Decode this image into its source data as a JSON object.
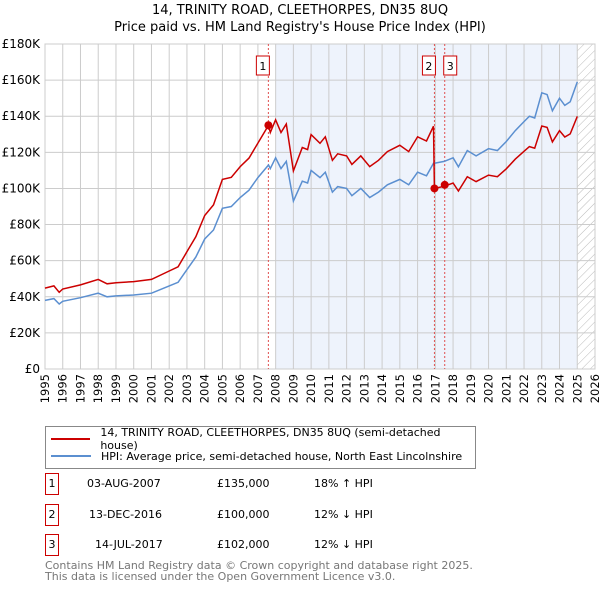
{
  "chart_data": {
    "type": "line",
    "title": "14, TRINITY ROAD, CLEETHORPES, DN35 8UQ",
    "subtitle": "Price paid vs. HM Land Registry's House Price Index (HPI)",
    "xlim": [
      1995,
      2026
    ],
    "ylim": [
      0,
      180000
    ],
    "yticks": [
      {
        "v": 0,
        "label": "£0"
      },
      {
        "v": 20000,
        "label": "£20K"
      },
      {
        "v": 40000,
        "label": "£40K"
      },
      {
        "v": 60000,
        "label": "£60K"
      },
      {
        "v": 80000,
        "label": "£80K"
      },
      {
        "v": 100000,
        "label": "£100K"
      },
      {
        "v": 120000,
        "label": "£120K"
      },
      {
        "v": 140000,
        "label": "£140K"
      },
      {
        "v": 160000,
        "label": "£160K"
      },
      {
        "v": 180000,
        "label": "£180K"
      }
    ],
    "xticks": [
      "1995",
      "1996",
      "1997",
      "1998",
      "1999",
      "2000",
      "2001",
      "2002",
      "2003",
      "2004",
      "2005",
      "2006",
      "2007",
      "2008",
      "2009",
      "2010",
      "2011",
      "2012",
      "2013",
      "2014",
      "2015",
      "2016",
      "2017",
      "2018",
      "2019",
      "2020",
      "2021",
      "2022",
      "2023",
      "2024",
      "2025",
      "2026"
    ],
    "grid": true,
    "shaded_from": 2008,
    "hatched_from": 2025,
    "x": [
      1995,
      1995.5,
      1995.8,
      1996,
      1997,
      1998,
      1998.5,
      1999,
      2000,
      2001,
      2002,
      2002.5,
      2003,
      2003.5,
      2004,
      2004.5,
      2005,
      2005.5,
      2006,
      2006.5,
      2007,
      2007.6,
      2007.7,
      2008,
      2008.3,
      2008.6,
      2009,
      2009.5,
      2009.8,
      2010,
      2010.5,
      2010.8,
      2011.2,
      2011.5,
      2012,
      2012.3,
      2012.8,
      2013.3,
      2013.8,
      2014.3,
      2015,
      2015.5,
      2016,
      2016.5,
      2016.9,
      2016.95,
      2017.5,
      2018,
      2018.3,
      2018.8,
      2019.3,
      2020,
      2020.5,
      2021,
      2021.5,
      2022,
      2022.3,
      2022.6,
      2023,
      2023.3,
      2023.6,
      2024,
      2024.3,
      2024.6,
      2025
    ],
    "series": [
      {
        "name": "14, TRINITY ROAD, CLEETHORPES, DN35 8UQ (semi-detached house)",
        "color": "#cc0000",
        "values_k": [
          44.8,
          46,
          42.5,
          44.3,
          46.6,
          49.6,
          47.2,
          47.8,
          48.4,
          49.6,
          54.3,
          56.6,
          64.9,
          73.2,
          85,
          90.9,
          105,
          106.2,
          112.1,
          116.8,
          125.1,
          135,
          131,
          138,
          131,
          135.7,
          109.7,
          122.7,
          121.5,
          129.8,
          125,
          128.6,
          115.6,
          119.2,
          118,
          113.3,
          118,
          112.1,
          115.6,
          120.4,
          123.9,
          120.4,
          128.6,
          126.3,
          134.5,
          100,
          101.2,
          103,
          98.6,
          106.5,
          103.8,
          107.4,
          106.5,
          110.9,
          116.2,
          120.6,
          123.2,
          122.3,
          134.6,
          133.8,
          125.8,
          132,
          128.5,
          130.2,
          139.9
        ]
      },
      {
        "name": "HPI: Average price, semi-detached house, North East Lincolnshire",
        "color": "#5b8fd0",
        "values_k": [
          38,
          39,
          36,
          37.5,
          39.5,
          42,
          40,
          40.5,
          41,
          42,
          46,
          48,
          55,
          62,
          72,
          77,
          89,
          90,
          95,
          99,
          106,
          113,
          111,
          117,
          111,
          115,
          93,
          104,
          103,
          110,
          106,
          109,
          98,
          101,
          100,
          96,
          100,
          95,
          98,
          102,
          105,
          102,
          109,
          107,
          114,
          114,
          115,
          117,
          112,
          121,
          118,
          122,
          121,
          126,
          132,
          137,
          140,
          139,
          153,
          152,
          143,
          150,
          146,
          148,
          159
        ]
      }
    ],
    "sales": [
      {
        "n": "1",
        "x": 2007.59,
        "date": "03-AUG-2007",
        "price": "£135,000",
        "value": 135000,
        "hpi": "18% ↑ HPI"
      },
      {
        "n": "2",
        "x": 2016.95,
        "date": "13-DEC-2016",
        "price": "£100,000",
        "value": 100000,
        "hpi": "12% ↓ HPI"
      },
      {
        "n": "3",
        "x": 2017.53,
        "date": "14-JUL-2017",
        "price": "£102,000",
        "value": 102000,
        "hpi": "12% ↓ HPI"
      }
    ]
  },
  "footer": {
    "line1": "Contains HM Land Registry data © Crown copyright and database right 2025.",
    "line2": "This data is licensed under the Open Government Licence v3.0."
  }
}
